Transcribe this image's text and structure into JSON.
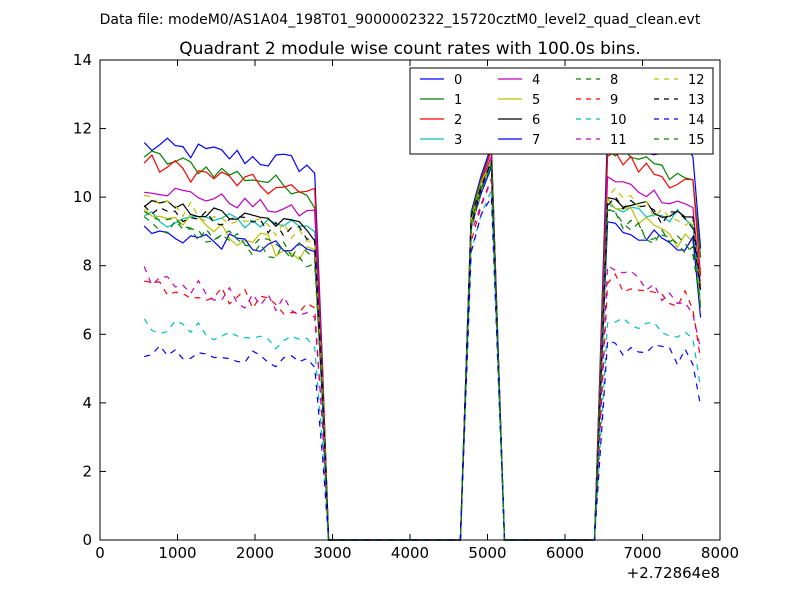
{
  "suptitle": "Data file: modeM0/AS1A04_198T01_9000002322_15720cztM0_level2_quad_clean.evt",
  "chart_data": {
    "type": "line",
    "title": "Quadrant 2 module wise count rates with 100.0s bins.",
    "xlabel": "",
    "ylabel": "",
    "x_offset_label": "+2.72864e8",
    "xlim": [
      0,
      8000
    ],
    "ylim": [
      0,
      14
    ],
    "xticks": [
      0,
      1000,
      2000,
      3000,
      4000,
      5000,
      6000,
      7000,
      8000
    ],
    "yticks": [
      0,
      2,
      4,
      6,
      8,
      10,
      12,
      14
    ],
    "legend_position": "top-right",
    "segments": [
      {
        "x_start": 570,
        "x_end": 2770,
        "points": 23
      },
      {
        "x_start": 4790,
        "x_end": 5050,
        "points": 3
      },
      {
        "x_start": 6550,
        "x_end": 7750,
        "points": 13
      }
    ],
    "series": [
      {
        "name": "0",
        "color": "#0000ff",
        "dash": false,
        "level": 11.5,
        "drop": 0.05,
        "noise": 0.3
      },
      {
        "name": "1",
        "color": "#008000",
        "dash": false,
        "level": 11.2,
        "drop": 0.09,
        "noise": 0.25
      },
      {
        "name": "2",
        "color": "#ff0000",
        "dash": false,
        "level": 11.0,
        "drop": 0.09,
        "noise": 0.3
      },
      {
        "name": "3",
        "color": "#00bfbf",
        "dash": false,
        "level": 9.4,
        "drop": 0.02,
        "noise": 0.25
      },
      {
        "name": "4",
        "color": "#bf00bf",
        "dash": false,
        "level": 10.3,
        "drop": 0.08,
        "noise": 0.2
      },
      {
        "name": "5",
        "color": "#bfbf00",
        "dash": false,
        "level": 9.6,
        "drop": 0.14,
        "noise": 0.3
      },
      {
        "name": "6",
        "color": "#000000",
        "dash": false,
        "level": 9.8,
        "drop": 0.07,
        "noise": 0.2
      },
      {
        "name": "7",
        "color": "#0000ff",
        "dash": false,
        "level": 9.0,
        "drop": 0.07,
        "noise": 0.25
      },
      {
        "name": "8",
        "color": "#008000",
        "dash": true,
        "level": 9.3,
        "drop": 0.12,
        "noise": 0.3
      },
      {
        "name": "9",
        "color": "#ff0000",
        "dash": true,
        "level": 7.5,
        "drop": 0.1,
        "noise": 0.3
      },
      {
        "name": "10",
        "color": "#00bfbf",
        "dash": true,
        "level": 6.3,
        "drop": 0.1,
        "noise": 0.25
      },
      {
        "name": "11",
        "color": "#bf00bf",
        "dash": true,
        "level": 7.7,
        "drop": 0.14,
        "noise": 0.3
      },
      {
        "name": "12",
        "color": "#bfbf00",
        "dash": true,
        "level": 9.9,
        "drop": 0.1,
        "noise": 0.25
      },
      {
        "name": "13",
        "color": "#000000",
        "dash": true,
        "level": 9.7,
        "drop": 0.08,
        "noise": 0.25
      },
      {
        "name": "14",
        "color": "#0000ff",
        "dash": true,
        "level": 5.5,
        "drop": 0.06,
        "noise": 0.25
      },
      {
        "name": "15",
        "color": "#008000",
        "dash": true,
        "level": 9.2,
        "drop": 0.1,
        "noise": 0.3
      }
    ]
  }
}
